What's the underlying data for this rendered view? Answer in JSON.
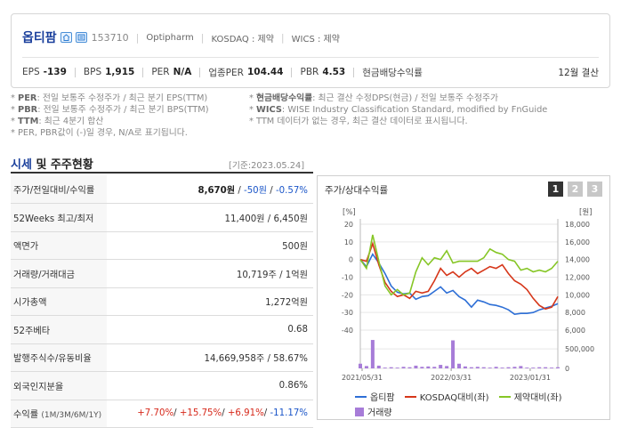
{
  "header": {
    "company": "옵티팜",
    "code": "153710",
    "english_name": "Optipharm",
    "market": "KOSDAQ : 제약",
    "wics": "WICS : 제약",
    "metrics": [
      {
        "label": "EPS",
        "value": "-139"
      },
      {
        "label": "BPS",
        "value": "1,915"
      },
      {
        "label": "PER",
        "value": "N/A"
      },
      {
        "label": "업종PER",
        "value": "104.44"
      },
      {
        "label": "PBR",
        "value": "4.53"
      },
      {
        "label": "현금배당수익률",
        "value": ""
      }
    ],
    "settlement": "12월 결산"
  },
  "notes": {
    "left": [
      {
        "key": "PER",
        "text": ": 전일 보통주 수정주가 / 최근 분기 EPS(TTM)"
      },
      {
        "key": "PBR",
        "text": ": 전일 보통주 수정주가 / 최근 분기 BPS(TTM)"
      },
      {
        "key": "TTM",
        "text": ": 최근 4분기 합산"
      },
      {
        "key": "",
        "text": "PER, PBR값이 (-)일 경우, N/A로 표기됩니다."
      }
    ],
    "right": [
      {
        "key": "현금배당수익률",
        "text": ": 최근 결산 수정DPS(현금) / 전일 보통주 수정주가"
      },
      {
        "key": "WICS",
        "text": ": WISE Industry Classification Standard, modified by FnGuide"
      },
      {
        "key": "",
        "text": "TTM 데이터가 없는 경우, 최근 결산 데이터로 표시됩니다."
      }
    ]
  },
  "section": {
    "title_hl": "시세",
    "title_rest": " 및 주주현황",
    "date": "[기준:2023.05.24]"
  },
  "table": {
    "price_label": "주가/전일대비/수익률",
    "price": "8,670원",
    "price_sep": " / ",
    "change": "-50원",
    "change_sep": " / ",
    "change_pct": "-0.57%",
    "rows": [
      {
        "label": "52Weeks 최고/최저",
        "value": "11,400원 / 6,450원"
      },
      {
        "label": "액면가",
        "value": "500원"
      },
      {
        "label": "거래량/거래대금",
        "value": "10,719주 / 1억원"
      },
      {
        "label": "시가총액",
        "value": "1,272억원"
      },
      {
        "label": "52주베타",
        "value": "0.68"
      },
      {
        "label": "발행주식수/유동비율",
        "value": "14,669,958주 / 58.67%"
      },
      {
        "label": "외국인지분율",
        "value": "0.86%"
      }
    ],
    "returns_label": "수익률",
    "returns_sub": "(1M/3M/6M/1Y)",
    "returns": [
      "+7.70%",
      "+15.75%",
      "+6.91%",
      "-11.17%"
    ]
  },
  "chart_panel": {
    "title": "주가/상대수익률",
    "tabs": [
      "1",
      "2",
      "3"
    ],
    "legend": {
      "price": "옵티팜",
      "kosdaq": "KOSDAQ대비(좌)",
      "pharma": "제약대비(좌)",
      "volume": "거래량"
    }
  },
  "chart_data": {
    "type": "line",
    "left_axis": {
      "label": "[%]",
      "ticks": [
        20,
        10,
        0,
        -10,
        -20,
        -30,
        -40
      ],
      "range": [
        -40,
        20
      ]
    },
    "right_axis": {
      "label": "[원]",
      "ticks": [
        "18,000",
        "16,000",
        "14,000",
        "12,000",
        "10,000",
        "8,000",
        "6,000"
      ],
      "range": [
        6000,
        18000
      ]
    },
    "volume_axis": {
      "ticks": [
        "500,000",
        "0"
      ],
      "range": [
        0,
        800000
      ]
    },
    "x_labels": [
      "2021/05/31",
      "2022/03/31",
      "2023/01/31"
    ],
    "series": [
      {
        "name": "옵티팜",
        "color": "#2e6fd6",
        "axis": "right",
        "values": [
          14000,
          13200,
          14600,
          13600,
          12400,
          11000,
          10300,
          10100,
          10200,
          9500,
          9800,
          9900,
          10400,
          10900,
          10200,
          10500,
          9800,
          9400,
          8600,
          9400,
          9200,
          8900,
          8800,
          8600,
          8300,
          7800,
          7900,
          7900,
          8000,
          8300,
          8500,
          8700,
          9000
        ]
      },
      {
        "name": "KOSDAQ대비",
        "color": "#d6371a",
        "axis": "left",
        "values": [
          0,
          -1,
          9,
          -3,
          -13,
          -18,
          -21,
          -20,
          -22,
          -18,
          -19,
          -18,
          -12,
          -5,
          -9,
          -7,
          -10,
          -7,
          -5,
          -8,
          -6,
          -4,
          -5,
          -3,
          -8,
          -12,
          -14,
          -17,
          -22,
          -26,
          -28,
          -27,
          -21
        ]
      },
      {
        "name": "제약대비",
        "color": "#86c626",
        "axis": "left",
        "values": [
          0,
          -5,
          14,
          -1,
          -15,
          -20,
          -17,
          -20,
          -19,
          -7,
          1,
          -3,
          1,
          0,
          5,
          -2,
          -1,
          -1,
          -1,
          -1,
          1,
          6,
          4,
          3,
          0,
          -1,
          -6,
          -5,
          -7,
          -6,
          -7,
          -5,
          -1
        ]
      },
      {
        "name": "거래량",
        "color": "#a77cd8",
        "axis": "volume",
        "values": [
          120000,
          60000,
          730000,
          70000,
          20000,
          30000,
          20000,
          40000,
          30000,
          70000,
          40000,
          50000,
          40000,
          90000,
          60000,
          720000,
          120000,
          50000,
          30000,
          40000,
          30000,
          20000,
          40000,
          20000,
          30000,
          40000,
          60000,
          20000,
          20000,
          30000,
          30000,
          20000,
          30000
        ]
      }
    ]
  }
}
